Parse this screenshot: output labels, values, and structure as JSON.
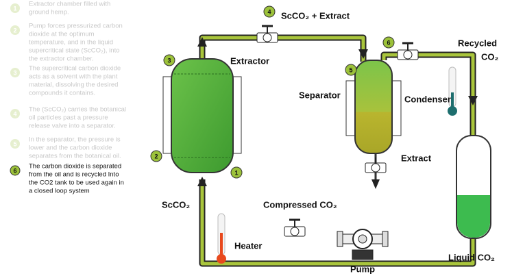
{
  "steps": [
    {
      "number": "1",
      "lines": [
        "Extractor chamber filled with",
        "ground hemp."
      ]
    },
    {
      "number": "2",
      "lines": [
        "Pump forces pressurized carbon",
        "dioxide at the optimum",
        "temperature, and in the liquid",
        "supercritical state (ScCO₂), into",
        "the extractor chamber."
      ]
    },
    {
      "number": "3",
      "lines": [
        "The supercritical carbon dioxide",
        "acts as a solvent with the plant",
        "material, dissolving the desired",
        "compounds it contains."
      ]
    },
    {
      "number": "4",
      "lines": [
        "The (ScCO₂) carries the botanical",
        "oil particles past a pressure",
        "release valve into a separator."
      ]
    },
    {
      "number": "5",
      "lines": [
        "In the separator, the pressure is",
        "lower and the carbon dioxide",
        "separates from the botanical oil."
      ]
    },
    {
      "number": "6",
      "lines": [
        "The carbon dioxide is separated",
        "from the oil and is recycled  Into",
        "the CO2 tank to be used again in",
        "a closed loop system"
      ]
    }
  ],
  "labels": {
    "top": "ScCO₂ + Extract",
    "extractor": "Extractor",
    "separator": "Separator",
    "condenser": "Condenser",
    "extract": "Extract",
    "recycled": "Recycled",
    "recycled_co2": "CO₂",
    "liquid": "Liquid CO₂",
    "compressed": "Compressed CO₂",
    "scco2": "ScCO₂",
    "heater": "Heater",
    "pump": "Pump"
  },
  "markers": [
    "1",
    "2",
    "3",
    "4",
    "5",
    "6"
  ]
}
